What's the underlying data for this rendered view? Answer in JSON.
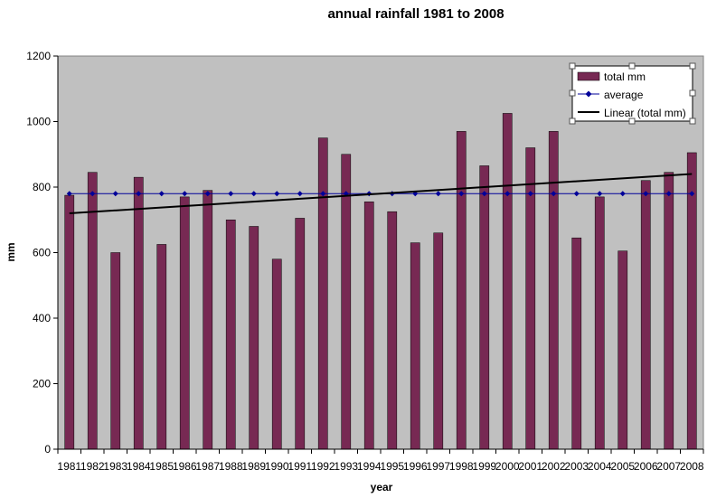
{
  "chart_data": {
    "type": "bar",
    "title": "annual rainfall 1981 to 2008",
    "xlabel": "year",
    "ylabel": "mm",
    "ylim": [
      0,
      1200
    ],
    "ytick_step": 200,
    "yticks": [
      "0",
      "200",
      "400",
      "600",
      "800",
      "1000",
      "1200"
    ],
    "categories": [
      "1981",
      "1982",
      "1983",
      "1984",
      "1985",
      "1986",
      "1987",
      "1988",
      "1989",
      "1990",
      "1991",
      "1992",
      "1993",
      "1994",
      "1995",
      "1996",
      "1997",
      "1998",
      "1999",
      "2000",
      "2001",
      "2002",
      "2003",
      "2004",
      "2005",
      "2006",
      "2007",
      "2008"
    ],
    "series": [
      {
        "name": "total mm",
        "type": "bar",
        "color": "#772953",
        "values": [
          775,
          845,
          600,
          830,
          625,
          770,
          790,
          700,
          680,
          580,
          705,
          950,
          900,
          755,
          725,
          630,
          660,
          970,
          865,
          1025,
          920,
          970,
          645,
          770,
          605,
          820,
          845,
          905
        ]
      },
      {
        "name": "average",
        "type": "line",
        "color": "#000099",
        "marker": "diamond",
        "values": [
          780,
          780,
          780,
          780,
          780,
          780,
          780,
          780,
          780,
          780,
          780,
          780,
          780,
          780,
          780,
          780,
          780,
          780,
          780,
          780,
          780,
          780,
          780,
          780,
          780,
          780,
          780,
          780
        ]
      },
      {
        "name": "Linear (total mm)",
        "type": "trendline",
        "color": "#000000",
        "start": 720,
        "end": 840
      }
    ],
    "grid": false,
    "plot_background": "#C0C0C0",
    "legend_position": "top-right"
  }
}
